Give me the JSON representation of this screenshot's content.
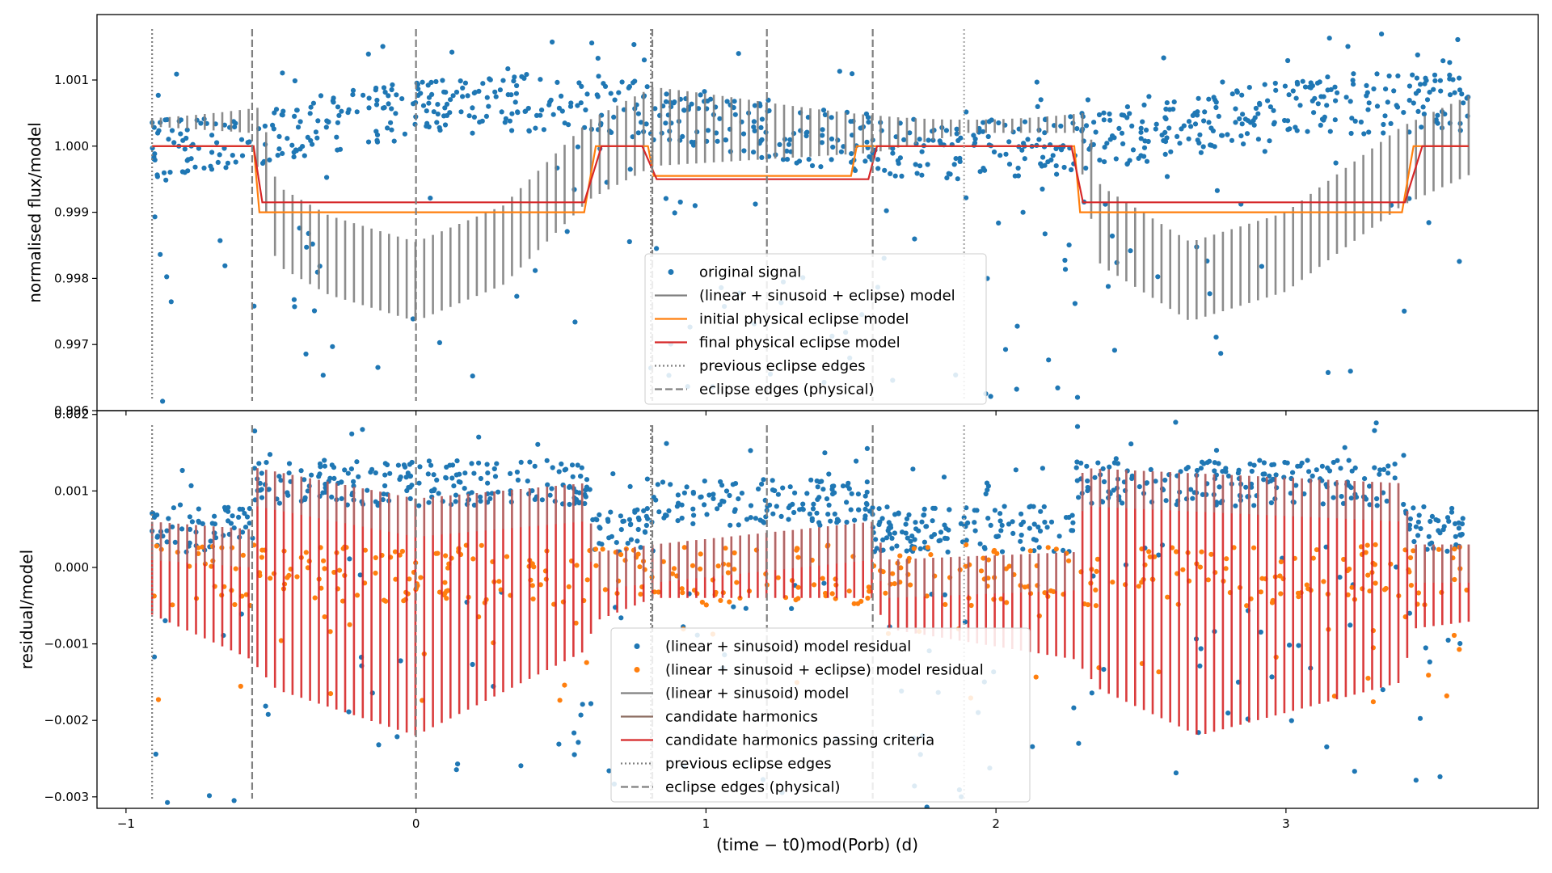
{
  "figure": {
    "width": 1920,
    "height": 1080
  },
  "chart_data": [
    {
      "type": "scatter",
      "panel": "top",
      "ylabel": "normalised flux/model",
      "xlabel": "",
      "xlim": [
        -1.1,
        3.87
      ],
      "ylim": [
        0.996,
        1.00199
      ],
      "xticks": [
        -1,
        0,
        1,
        2,
        3
      ],
      "xtick_labels": [
        "",
        "",
        "",
        "",
        ""
      ],
      "yticks": [
        0.996,
        0.997,
        0.998,
        0.999,
        1.0,
        1.001
      ],
      "ytick_labels": [
        "0.996",
        "0.997",
        "0.998",
        "0.999",
        "1.000",
        "1.001"
      ],
      "legend": {
        "position": "lower center",
        "entries": [
          {
            "label": "original signal",
            "marker": "dot",
            "color": "#1f77b4"
          },
          {
            "label": "(linear + sinusoid + eclipse) model",
            "marker": "line",
            "color": "#808080"
          },
          {
            "label": "initial physical eclipse model",
            "marker": "line",
            "color": "#ff7f0e"
          },
          {
            "label": "final physical eclipse model",
            "marker": "line",
            "color": "#d62728"
          },
          {
            "label": "previous eclipse edges",
            "marker": "dotted",
            "color": "#808080"
          },
          {
            "label": "eclipse edges (physical)",
            "marker": "dashed",
            "color": "#808080"
          }
        ]
      },
      "series": [
        {
          "name": "original signal",
          "kind": "scatter",
          "color": "#1f77b4",
          "description_of_shape": "dense band about 1.0003 with sinusoidal trend; scattered outliers from 0.9962 to 1.0016"
        },
        {
          "name": "(linear + sinusoid + eclipse) model",
          "kind": "oscillating_line",
          "color": "#808080",
          "envelope_points": [
            [
              -0.92,
              1.0003
            ],
            [
              -0.57,
              1.0002
            ],
            [
              -0.48,
              0.9982
            ],
            [
              -0.3,
              0.99775
            ],
            [
              0.0,
              0.99735
            ],
            [
              0.3,
              0.9979
            ],
            [
              0.6,
              0.9992
            ],
            [
              0.82,
              0.9997
            ],
            [
              1.2,
              0.9998
            ],
            [
              1.58,
              0.9999
            ],
            [
              1.9,
              1.0002
            ],
            [
              2.27,
              1.0002
            ],
            [
              2.36,
              0.9982
            ],
            [
              2.67,
              0.99735
            ],
            [
              3.0,
              0.9978
            ],
            [
              3.4,
              0.9991
            ],
            [
              3.65,
              0.9996
            ]
          ]
        },
        {
          "name": "initial physical eclipse model",
          "kind": "line",
          "color": "#ff7f0e",
          "x": [
            -0.91,
            -0.56,
            -0.54,
            0.58,
            0.62,
            0.8,
            0.82,
            1.5,
            1.52,
            1.57,
            2.27,
            2.29,
            3.4,
            3.44,
            3.63
          ],
          "y": [
            1.0,
            1.0,
            0.999,
            0.999,
            1.0,
            1.0,
            0.99955,
            0.99955,
            1.0,
            1.0,
            1.0,
            0.999,
            0.999,
            1.0,
            1.0
          ]
        },
        {
          "name": "final physical eclipse model",
          "kind": "line",
          "color": "#d62728",
          "x": [
            -0.91,
            -0.56,
            -0.53,
            0.58,
            0.64,
            0.78,
            0.83,
            1.56,
            1.59,
            2.26,
            2.3,
            3.41,
            3.47,
            3.63
          ],
          "y": [
            1.0,
            1.0,
            0.99915,
            0.99915,
            1.0,
            1.0,
            0.9995,
            0.9995,
            1.0,
            1.0,
            0.99915,
            0.99915,
            1.0,
            1.0
          ]
        }
      ],
      "vlines": [
        {
          "x": -0.91,
          "style": "dotted",
          "color": "#808080"
        },
        {
          "x": 0.81,
          "style": "dotted",
          "color": "#808080"
        },
        {
          "x": 1.89,
          "style": "dotted",
          "color": "#aaaaaa"
        },
        {
          "x": -0.565,
          "style": "dashed",
          "color": "#808080"
        },
        {
          "x": 0.0,
          "style": "dashed",
          "color": "#808080"
        },
        {
          "x": 0.815,
          "style": "dashed",
          "color": "#808080"
        },
        {
          "x": 1.21,
          "style": "dashed",
          "color": "#808080"
        },
        {
          "x": 1.575,
          "style": "dashed",
          "color": "#808080"
        }
      ]
    },
    {
      "type": "scatter",
      "panel": "bottom",
      "ylabel": "residual/model",
      "xlabel": "(time − t0)mod(Porb) (d)",
      "xlim": [
        -1.1,
        3.87
      ],
      "ylim": [
        -0.00315,
        0.00205
      ],
      "xticks": [
        -1,
        0,
        1,
        2,
        3
      ],
      "xtick_labels": [
        "−1",
        "0",
        "1",
        "2",
        "3"
      ],
      "yticks": [
        -0.003,
        -0.002,
        -0.001,
        0.0,
        0.001,
        0.002
      ],
      "ytick_labels": [
        "−0.003",
        "−0.002",
        "−0.001",
        "0.000",
        "0.001",
        "0.002"
      ],
      "legend": {
        "position": "lower center",
        "entries": [
          {
            "label": "(linear + sinusoid) model residual",
            "marker": "dot",
            "color": "#1f77b4"
          },
          {
            "label": "(linear + sinusoid + eclipse) model residual",
            "marker": "dot",
            "color": "#ff7f0e"
          },
          {
            "label": "(linear + sinusoid) model",
            "marker": "line",
            "color": "#808080"
          },
          {
            "label": "candidate harmonics",
            "marker": "line",
            "color": "#8c6d62"
          },
          {
            "label": "candidate harmonics passing criteria",
            "marker": "line",
            "color": "#d62728"
          },
          {
            "label": "previous eclipse edges",
            "marker": "dotted",
            "color": "#808080"
          },
          {
            "label": "eclipse edges (physical)",
            "marker": "dashed",
            "color": "#808080"
          }
        ]
      },
      "series": [
        {
          "name": "(linear + sinusoid) model residual",
          "kind": "scatter",
          "color": "#1f77b4",
          "description_of_shape": "band around 0.0006–0.0011 in eclipse-free regions, outliers down to −0.0029 and up to 0.0019"
        },
        {
          "name": "(linear + sinusoid + eclipse) model residual",
          "kind": "scatter",
          "color": "#ff7f0e",
          "description_of_shape": "band around 0.0 to −0.0003 throughout"
        },
        {
          "name": "candidate harmonics passing criteria",
          "kind": "oscillating_line",
          "color": "#d62728",
          "envelope_points": [
            [
              -0.92,
              0.0006
            ],
            [
              -0.57,
              0.0005
            ],
            [
              -0.55,
              0.0013
            ],
            [
              0.0,
              0.0009
            ],
            [
              0.58,
              0.0011
            ],
            [
              0.62,
              0.0002
            ],
            [
              0.82,
              0.0003
            ],
            [
              1.58,
              0.0006
            ],
            [
              1.62,
              0.0001
            ],
            [
              2.27,
              0.0002
            ],
            [
              2.3,
              0.0013
            ],
            [
              3.4,
              0.0011
            ],
            [
              3.44,
              0.0003
            ],
            [
              3.65,
              0.0003
            ]
          ],
          "lower_envelope_points": [
            [
              -0.92,
              -0.0006
            ],
            [
              -0.57,
              -0.0012
            ],
            [
              -0.48,
              -0.0016
            ],
            [
              0.0,
              -0.0022
            ],
            [
              0.58,
              -0.0011
            ],
            [
              0.62,
              -0.0007
            ],
            [
              0.82,
              -0.0004
            ],
            [
              1.58,
              -0.0004
            ],
            [
              1.62,
              -0.0008
            ],
            [
              2.27,
              -0.0012
            ],
            [
              2.36,
              -0.0016
            ],
            [
              2.7,
              -0.0022
            ],
            [
              3.4,
              -0.0015
            ],
            [
              3.44,
              -0.0008
            ],
            [
              3.65,
              -0.0007
            ]
          ]
        }
      ],
      "vlines": [
        {
          "x": -0.91,
          "style": "dotted",
          "color": "#808080"
        },
        {
          "x": 0.81,
          "style": "dotted",
          "color": "#808080"
        },
        {
          "x": 1.89,
          "style": "dotted",
          "color": "#aaaaaa"
        },
        {
          "x": -0.565,
          "style": "dashed",
          "color": "#808080"
        },
        {
          "x": 0.0,
          "style": "dashed",
          "color": "#808080"
        },
        {
          "x": 0.815,
          "style": "dashed",
          "color": "#808080"
        },
        {
          "x": 1.21,
          "style": "dashed",
          "color": "#808080"
        },
        {
          "x": 1.575,
          "style": "dashed",
          "color": "#808080"
        }
      ]
    }
  ]
}
